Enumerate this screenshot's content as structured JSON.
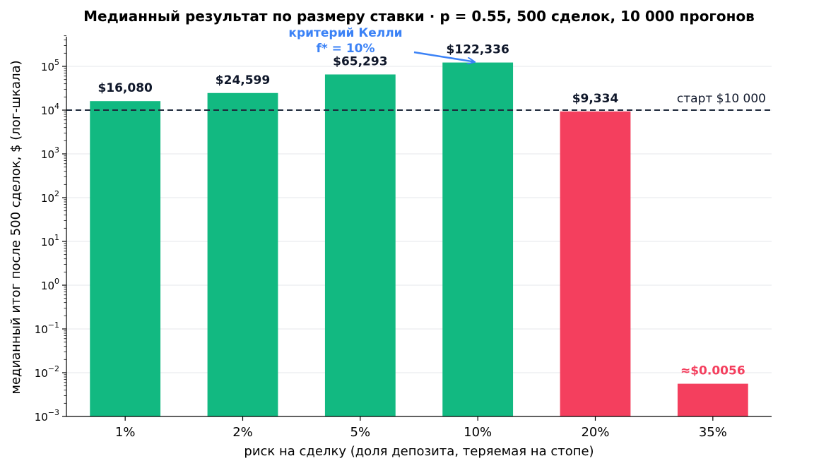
{
  "chart_data": {
    "type": "bar",
    "title": "Медианный результат по размеру ставки  ·  p = 0.55, 500 сделок, 10 000 прогонов",
    "xlabel": "риск на сделку (доля депозита, теряемая на стопе)",
    "ylabel": "медианный итог после 500 сделок, $  (лог-шкала)",
    "yscale": "log",
    "ylim": [
      0.001,
      500000
    ],
    "grid": "horizontal",
    "categories": [
      "1%",
      "2%",
      "5%",
      "10%",
      "20%",
      "35%"
    ],
    "values": [
      16080,
      24599,
      65293,
      122336,
      9334,
      0.0056
    ],
    "data_labels": [
      "$16,080",
      "$24,599",
      "$65,293",
      "$122,336",
      "$9,334",
      "≈$0.0056"
    ],
    "bar_colors": [
      "#12b981",
      "#12b981",
      "#12b981",
      "#12b981",
      "#f43f5e",
      "#f43f5e"
    ],
    "label_colors": [
      "#0f172a",
      "#0f172a",
      "#0f172a",
      "#0f172a",
      "#0f172a",
      "#f43f5e"
    ],
    "y_ticks": [
      {
        "value": 0.001,
        "base": "10",
        "exp": "−3"
      },
      {
        "value": 0.01,
        "base": "10",
        "exp": "−2"
      },
      {
        "value": 0.1,
        "base": "10",
        "exp": "−1"
      },
      {
        "value": 1,
        "base": "10",
        "exp": "0"
      },
      {
        "value": 10,
        "base": "10",
        "exp": "1"
      },
      {
        "value": 100,
        "base": "10",
        "exp": "2"
      },
      {
        "value": 1000,
        "base": "10",
        "exp": "3"
      },
      {
        "value": 10000,
        "base": "10",
        "exp": "4"
      },
      {
        "value": 100000,
        "base": "10",
        "exp": "5"
      }
    ],
    "reference_line": {
      "value": 10000,
      "label": "старт $10 000",
      "color": "#1e293b",
      "style": "dashed"
    },
    "annotation": {
      "lines": [
        "критерий Келли",
        "f* = 10%"
      ],
      "target_category": "10%",
      "color": "#3b82f6"
    }
  }
}
